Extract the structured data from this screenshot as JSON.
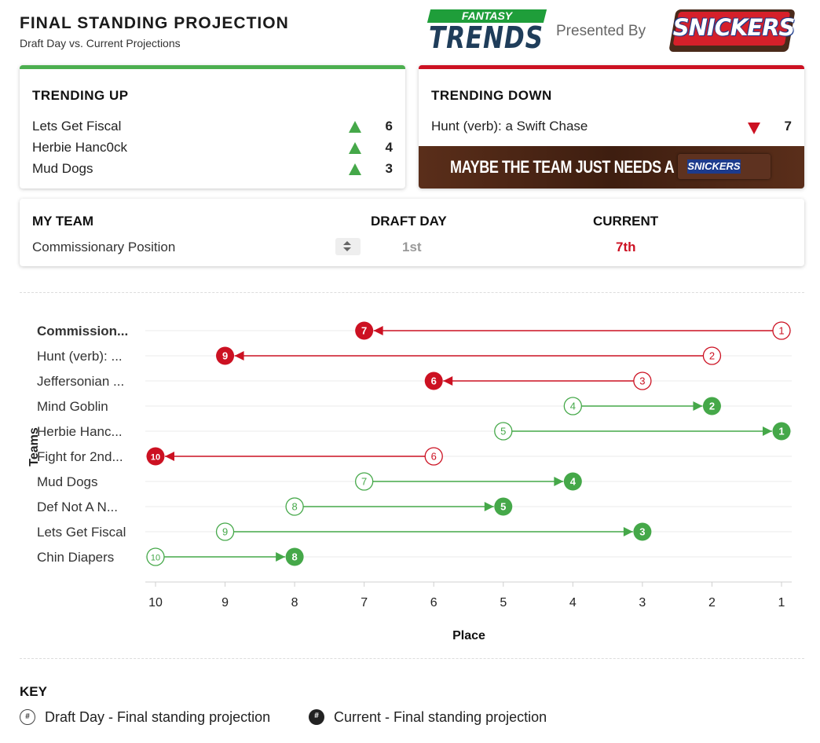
{
  "header": {
    "title": "FINAL STANDING PROJECTION",
    "subtitle": "Draft Day vs. Current Projections",
    "logo_fantasy": "FANTASY",
    "logo_trends": "TRENDS",
    "presented_by": "Presented By",
    "sponsor_logo": "SNICKERS"
  },
  "trending_up": {
    "title": "TRENDING UP",
    "accent": "#4caf50",
    "items": [
      {
        "name": "Lets Get Fiscal",
        "change": "6"
      },
      {
        "name": "Herbie Hanc0ck",
        "change": "4"
      },
      {
        "name": "Mud Dogs",
        "change": "3"
      }
    ]
  },
  "trending_down": {
    "title": "TRENDING DOWN",
    "accent": "#cc1122",
    "items": [
      {
        "name": "Hunt (verb): a Swift Chase",
        "change": "7"
      }
    ],
    "banner_text": "MAYBE THE TEAM JUST NEEDS A",
    "banner_bar": "SNICKERS"
  },
  "my_team": {
    "col_team": "MY TEAM",
    "col_draft": "DRAFT DAY",
    "col_current": "CURRENT",
    "team_value": "Commissionary Position",
    "draft_value": "1st",
    "current_value": "7th"
  },
  "chart_data": {
    "type": "dumbbell",
    "ylabel": "Teams",
    "xlabel": "Place",
    "x_ticks": [
      "10",
      "9",
      "8",
      "7",
      "6",
      "5",
      "4",
      "3",
      "2",
      "1"
    ],
    "xlim": [
      10,
      1
    ],
    "rows": [
      {
        "label": "Commission...",
        "bold": true,
        "draft": 1,
        "current": 7
      },
      {
        "label": "Hunt (verb): ...",
        "draft": 2,
        "current": 9
      },
      {
        "label": "Jeffersonian ...",
        "draft": 3,
        "current": 6
      },
      {
        "label": "Mind Goblin",
        "draft": 4,
        "current": 2
      },
      {
        "label": "Herbie Hanc...",
        "draft": 5,
        "current": 1
      },
      {
        "label": "Fight for 2nd...",
        "draft": 6,
        "current": 10
      },
      {
        "label": "Mud Dogs",
        "draft": 7,
        "current": 4
      },
      {
        "label": "Def Not A N...",
        "draft": 8,
        "current": 5
      },
      {
        "label": "Lets Get Fiscal",
        "draft": 9,
        "current": 3
      },
      {
        "label": "Chin Diapers",
        "draft": 10,
        "current": 8
      }
    ],
    "colors": {
      "up": "#45a849",
      "down": "#cc1122"
    }
  },
  "key": {
    "title": "KEY",
    "draft_label": "Draft Day - Final standing projection",
    "current_label": "Current - Final standing projection",
    "symbol": "#"
  }
}
